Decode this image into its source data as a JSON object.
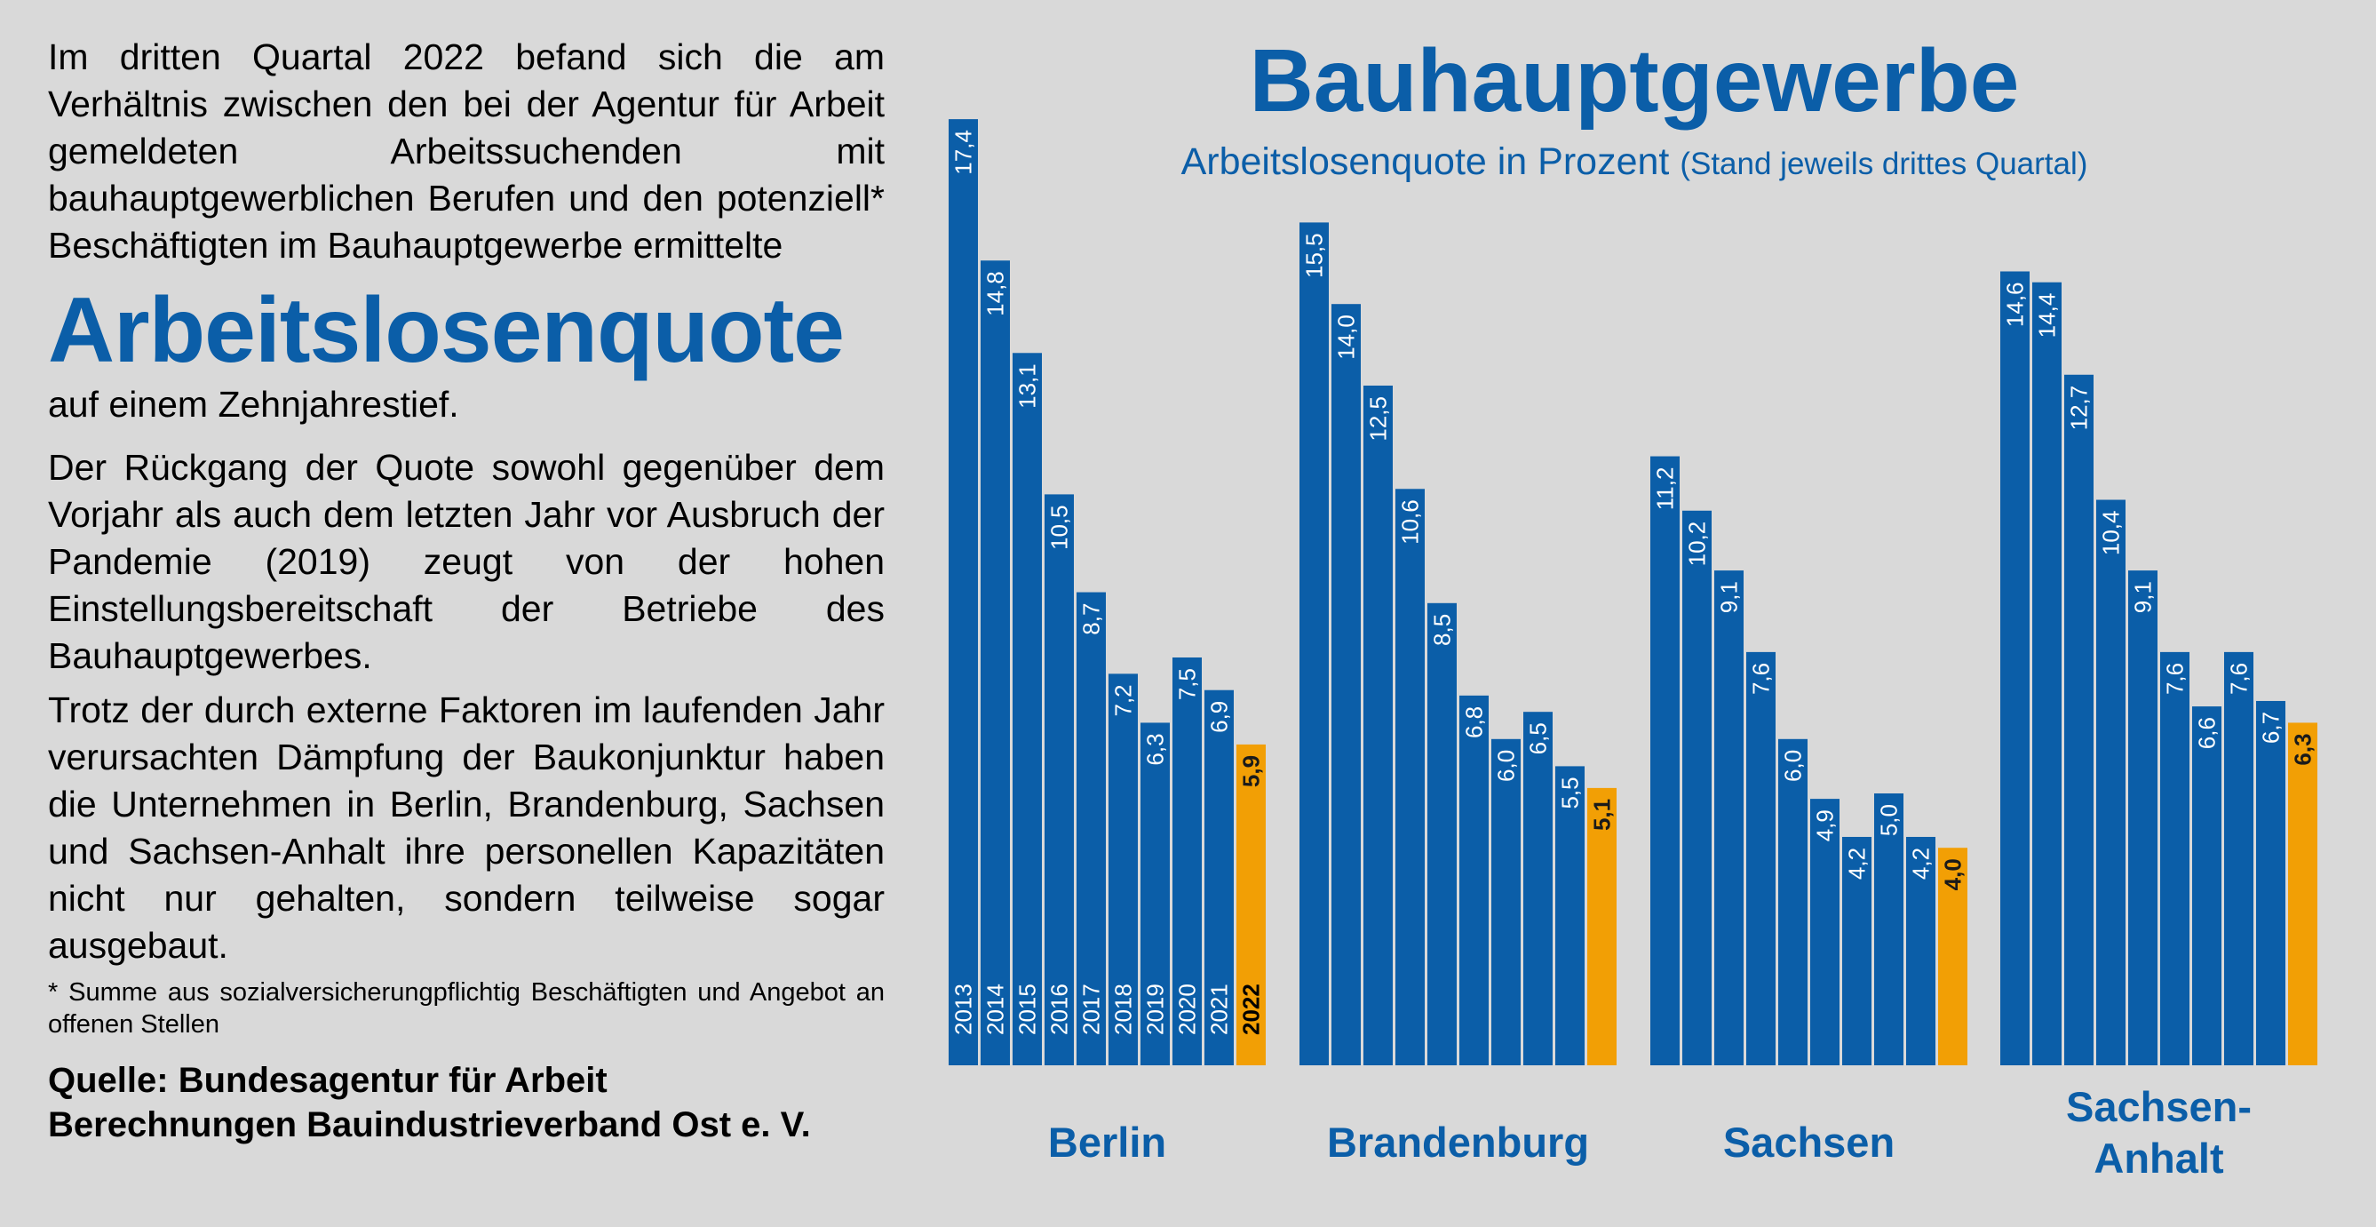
{
  "text": {
    "intro": "Im dritten Quartal 2022 befand sich die am Verhältnis zwischen den bei der Agentur für Arbeit gemeldeten Arbeitssuchenden mit bauhauptgewerblichen Berufen und den potenziell* Beschäftigten im Bauhauptgewerbe ermittelte",
    "headline": "Arbeitslosenquote",
    "after_headline": "auf einem Zehnjahrestief.",
    "paragraph2": "Der Rückgang der Quote sowohl gegenüber dem Vorjahr als auch dem letzten Jahr vor Ausbruch der Pandemie (2019) zeugt von der hohen Einstellungsbereitschaft der Betriebe des Bauhauptgewerbes.",
    "paragraph3": "Trotz der durch externe Faktoren im laufenden Jahr verursachten Dämpfung der Baukonjunktur haben die Unternehmen in Berlin, Brandenburg, Sachsen und Sachsen-Anhalt ihre personellen Kapazitäten nicht nur gehalten, sondern teilweise sogar ausgebaut.",
    "footnote": "* Summe aus sozialversicherungpflichtig Beschäftigten und Angebot an offenen Stellen",
    "source_line1": "Quelle: Bundesagentur für Arbeit",
    "source_line2": "Berechnungen Bauindustrieverband Ost e. V."
  },
  "chart_data": {
    "type": "bar",
    "title": "Bauhauptgewerbe",
    "subtitle_main": "Arbeitslosenquote in Prozent",
    "subtitle_note": "(Stand jeweils drittes Quartal)",
    "categories": [
      "2013",
      "2014",
      "2015",
      "2016",
      "2017",
      "2018",
      "2019",
      "2020",
      "2021",
      "2022"
    ],
    "highlight_category": "2022",
    "groups": [
      {
        "name": "Berlin",
        "values": [
          17.4,
          14.8,
          13.1,
          10.5,
          8.7,
          7.2,
          6.3,
          7.5,
          6.9,
          5.9
        ]
      },
      {
        "name": "Brandenburg",
        "values": [
          15.5,
          14.0,
          12.5,
          10.6,
          8.5,
          6.8,
          6.0,
          6.5,
          5.5,
          5.1
        ]
      },
      {
        "name": "Sachsen",
        "values": [
          11.2,
          10.2,
          9.1,
          7.6,
          6.0,
          4.9,
          4.2,
          5.0,
          4.2,
          4.0
        ]
      },
      {
        "name": "Sachsen-Anhalt",
        "label_lines": [
          "Sachsen-",
          "Anhalt"
        ],
        "values": [
          14.6,
          14.4,
          12.7,
          10.4,
          9.1,
          7.6,
          6.6,
          7.6,
          6.7,
          6.3
        ]
      }
    ],
    "decimal_separator": ",",
    "colors": {
      "bar": "#0b5ea8",
      "highlight": "#f29f05",
      "group_label": "#0b5ea8",
      "value_label": "#ffffff",
      "highlight_label": "#1a1a1a"
    }
  }
}
